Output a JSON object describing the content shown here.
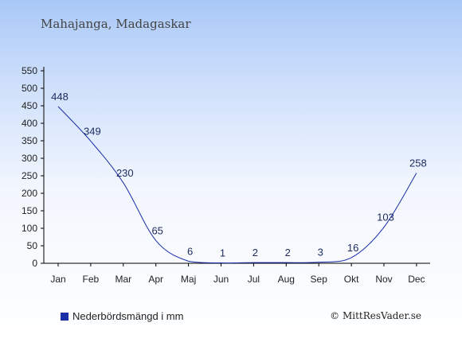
{
  "header": {
    "title": "Mahajanga, Madagaskar"
  },
  "legend": {
    "label": "Nederbördsmängd i mm",
    "color": "#1a2ea8"
  },
  "credit": {
    "text": "© MittResVader.se"
  },
  "chart_data": {
    "type": "line",
    "title": "Mahajanga, Madagaskar",
    "categories": [
      "Jan",
      "Feb",
      "Mar",
      "Apr",
      "Maj",
      "Jun",
      "Jul",
      "Aug",
      "Sep",
      "Okt",
      "Nov",
      "Dec"
    ],
    "series": [
      {
        "name": "Nederbördsmängd i mm",
        "values": [
          448,
          349,
          230,
          65,
          6,
          1,
          2,
          2,
          3,
          16,
          103,
          258
        ],
        "color": "#1a2ea8"
      }
    ],
    "xlabel": "",
    "ylabel": "",
    "ylim": [
      0,
      550
    ],
    "yticks": [
      0,
      50,
      100,
      150,
      200,
      250,
      300,
      350,
      400,
      450,
      500,
      550
    ],
    "grid": false,
    "legend_position": "bottom-left"
  }
}
